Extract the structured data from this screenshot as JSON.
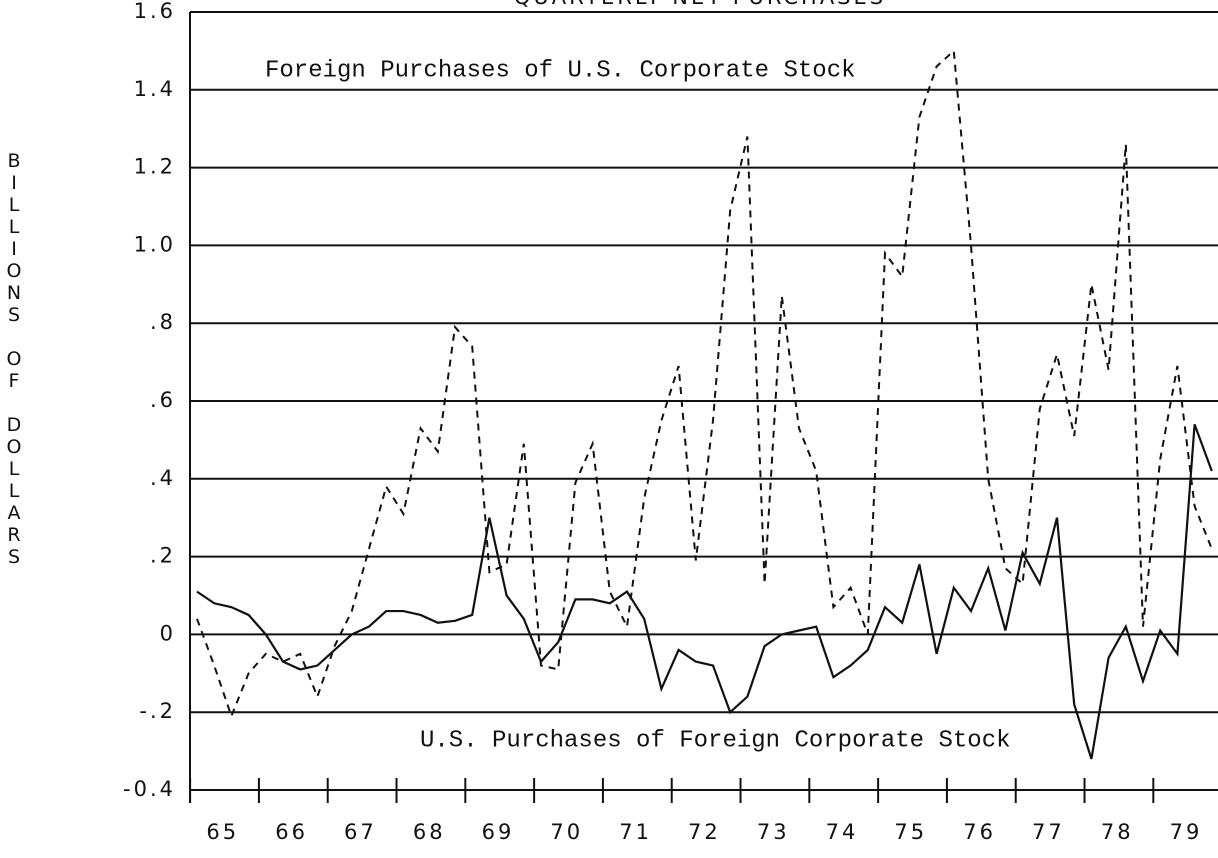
{
  "chart_data": {
    "type": "line",
    "title": "QUARTERLY NET PURCHASES",
    "y_label": "BILLIONS OF DOLLARS",
    "categories": [
      null,
      "65",
      null,
      null,
      null,
      "66",
      null,
      null,
      null,
      "67",
      null,
      null,
      null,
      "68",
      null,
      null,
      null,
      "69",
      null,
      null,
      null,
      "70",
      null,
      null,
      null,
      "71",
      null,
      null,
      null,
      "72",
      null,
      null,
      null,
      "73",
      null,
      null,
      null,
      "74",
      null,
      null,
      null,
      "75",
      null,
      null,
      null,
      "76",
      null,
      null,
      null,
      "77",
      null,
      null,
      null,
      "78",
      null,
      null,
      null,
      "79",
      null,
      null
    ],
    "series": [
      {
        "name": "Foreign Purchases of U.S. Corporate Stock",
        "color": "#111111",
        "style": "dashed",
        "values": [
          0.04,
          -0.08,
          -0.21,
          -0.1,
          -0.05,
          -0.07,
          -0.05,
          -0.16,
          -0.03,
          0.06,
          0.22,
          0.38,
          0.31,
          0.53,
          0.47,
          0.79,
          0.74,
          0.16,
          0.18,
          0.49,
          -0.08,
          -0.09,
          0.39,
          0.49,
          0.11,
          0.02,
          0.35,
          0.55,
          0.69,
          0.19,
          0.55,
          1.09,
          1.28,
          0.13,
          0.87,
          0.53,
          0.42,
          0.07,
          0.12,
          0.0,
          0.98,
          0.92,
          1.33,
          1.46,
          1.5,
          1.0,
          0.4,
          0.17,
          0.13,
          0.58,
          0.72,
          0.51,
          0.9,
          0.68,
          1.26,
          0.02,
          0.45,
          0.69,
          0.33,
          0.22
        ]
      },
      {
        "name": "U.S. Purchases of Foreign Corporate Stock",
        "color": "#111111",
        "style": "solid",
        "values": [
          0.11,
          0.08,
          0.07,
          0.05,
          0.0,
          -0.07,
          -0.09,
          -0.08,
          -0.04,
          0.0,
          0.02,
          0.06,
          0.06,
          0.05,
          0.03,
          0.035,
          0.05,
          0.3,
          0.1,
          0.04,
          -0.07,
          -0.02,
          0.09,
          0.09,
          0.08,
          0.11,
          0.04,
          -0.14,
          -0.04,
          -0.07,
          -0.08,
          -0.2,
          -0.16,
          -0.03,
          0.0,
          0.01,
          0.02,
          -0.11,
          -0.08,
          -0.04,
          0.07,
          0.03,
          0.18,
          -0.05,
          0.12,
          0.06,
          0.17,
          0.01,
          0.21,
          0.13,
          0.3,
          -0.18,
          -0.32,
          -0.06,
          0.02,
          -0.12,
          0.01,
          -0.05,
          0.54,
          0.42
        ]
      }
    ],
    "ylim": [
      -0.4,
      1.6
    ],
    "yticks": [
      -0.4,
      {
        "value": -0.2,
        "label": "-.2"
      },
      0,
      {
        "value": 0.2,
        "label": ".2"
      },
      {
        "value": 0.4,
        "label": ".4"
      },
      {
        "value": 0.6,
        "label": ".6"
      },
      {
        "value": 0.8,
        "label": ".8"
      },
      {
        "value": 1,
        "label": "1.0"
      },
      1.2,
      1.4,
      1.6
    ],
    "grid": true
  }
}
